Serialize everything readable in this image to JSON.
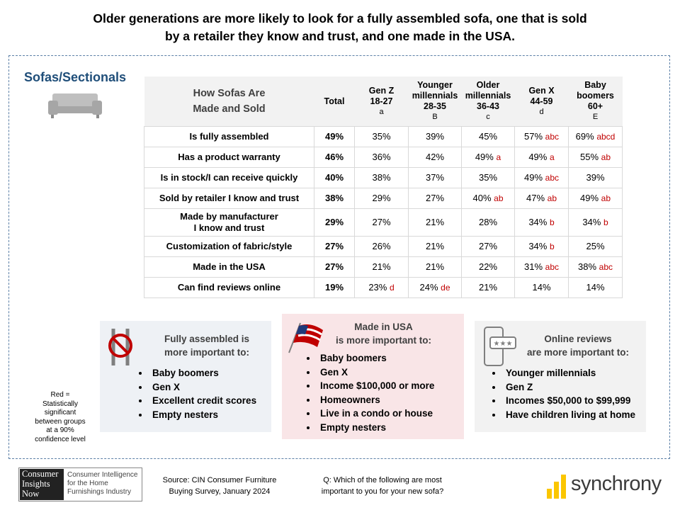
{
  "title": [
    "Older generations are more likely to look for a fully assembled sofa, one that is sold",
    "by a retailer they know and trust, and one made in the USA."
  ],
  "section": "Sofas/Sectionals",
  "table": {
    "header": [
      "How Sofas Are",
      "Made and Sold"
    ],
    "columns": [
      {
        "lines": [
          "Total"
        ]
      },
      {
        "lines": [
          "Gen Z",
          "18-27"
        ],
        "letter": "a"
      },
      {
        "lines": [
          "Younger",
          "millennials",
          "28-35"
        ],
        "letter": "B"
      },
      {
        "lines": [
          "Older",
          "millennials",
          "36-43"
        ],
        "letter": "c"
      },
      {
        "lines": [
          "Gen X",
          "44-59"
        ],
        "letter": "d"
      },
      {
        "lines": [
          "Baby",
          "boomers",
          "60+"
        ],
        "letter": "E"
      }
    ],
    "rows": [
      {
        "label": [
          "Is fully assembled"
        ],
        "cells": [
          {
            "value": "49%"
          },
          {
            "value": "35%"
          },
          {
            "value": "39%"
          },
          {
            "value": "45%"
          },
          {
            "value": "57%",
            "sig": "abc"
          },
          {
            "value": "69%",
            "sig": "abcd"
          }
        ]
      },
      {
        "label": [
          "Has a product warranty"
        ],
        "cells": [
          {
            "value": "46%"
          },
          {
            "value": "36%"
          },
          {
            "value": "42%"
          },
          {
            "value": "49%",
            "sig": "a"
          },
          {
            "value": "49%",
            "sig": "a"
          },
          {
            "value": "55%",
            "sig": "ab"
          }
        ]
      },
      {
        "label": [
          "Is in stock/I can receive quickly"
        ],
        "cells": [
          {
            "value": "40%"
          },
          {
            "value": "38%"
          },
          {
            "value": "37%"
          },
          {
            "value": "35%"
          },
          {
            "value": "49%",
            "sig": "abc"
          },
          {
            "value": "39%"
          }
        ]
      },
      {
        "label": [
          "Sold by retailer I know and trust"
        ],
        "cells": [
          {
            "value": "38%"
          },
          {
            "value": "29%"
          },
          {
            "value": "27%"
          },
          {
            "value": "40%",
            "sig": "ab"
          },
          {
            "value": "47%",
            "sig": "ab"
          },
          {
            "value": "49%",
            "sig": "ab"
          }
        ]
      },
      {
        "label": [
          "Made by manufacturer",
          "I know and trust"
        ],
        "cells": [
          {
            "value": "29%"
          },
          {
            "value": "27%"
          },
          {
            "value": "21%"
          },
          {
            "value": "28%"
          },
          {
            "value": "34%",
            "sig": "b"
          },
          {
            "value": "34%",
            "sig": "b"
          }
        ]
      },
      {
        "label": [
          "Customization of fabric/style"
        ],
        "cells": [
          {
            "value": "27%"
          },
          {
            "value": "26%"
          },
          {
            "value": "21%"
          },
          {
            "value": "27%"
          },
          {
            "value": "34%",
            "sig": "b"
          },
          {
            "value": "25%"
          }
        ]
      },
      {
        "label": [
          "Made in the USA"
        ],
        "cells": [
          {
            "value": "27%"
          },
          {
            "value": "21%"
          },
          {
            "value": "21%"
          },
          {
            "value": "22%"
          },
          {
            "value": "31%",
            "sig": "abc"
          },
          {
            "value": "38%",
            "sig": "abc"
          }
        ]
      },
      {
        "label": [
          "Can find reviews online"
        ],
        "cells": [
          {
            "value": "19%"
          },
          {
            "value": "23%",
            "sig": "d"
          },
          {
            "value": "24%",
            "sig": "de"
          },
          {
            "value": "21%"
          },
          {
            "value": "14%"
          },
          {
            "value": "14%"
          }
        ]
      }
    ]
  },
  "boxes": [
    {
      "title": [
        "Fully assembled is",
        "more important to:"
      ],
      "items": [
        "Baby boomers",
        "Gen X",
        "Excellent credit scores",
        "Empty nesters"
      ]
    },
    {
      "title": [
        "Made in USA",
        "is more important to:"
      ],
      "items": [
        "Baby boomers",
        "Gen X",
        "Income $100,000 or more",
        "Homeowners",
        "Live in a condo or house",
        "Empty nesters"
      ]
    },
    {
      "title": [
        "Online reviews",
        "are more important to:"
      ],
      "items": [
        "Younger millennials",
        "Gen Z",
        "Incomes $50,000 to $99,999",
        "Have children living at home"
      ]
    }
  ],
  "note": [
    "Red =",
    "Statistically",
    "significant",
    "between groups",
    "at a 90%",
    "confidence level"
  ],
  "footer": {
    "logo": [
      "Consumer",
      "Insights",
      "Now"
    ],
    "logo_tagline": [
      "Consumer Intelligence",
      "for the Home",
      "Furnishings Industry"
    ],
    "source": [
      "Source: CIN Consumer Furniture",
      "Buying Survey, January 2024"
    ],
    "question": [
      "Q: Which of the following are most",
      "important to you for your new sofa?"
    ],
    "brand": "synchrony"
  }
}
